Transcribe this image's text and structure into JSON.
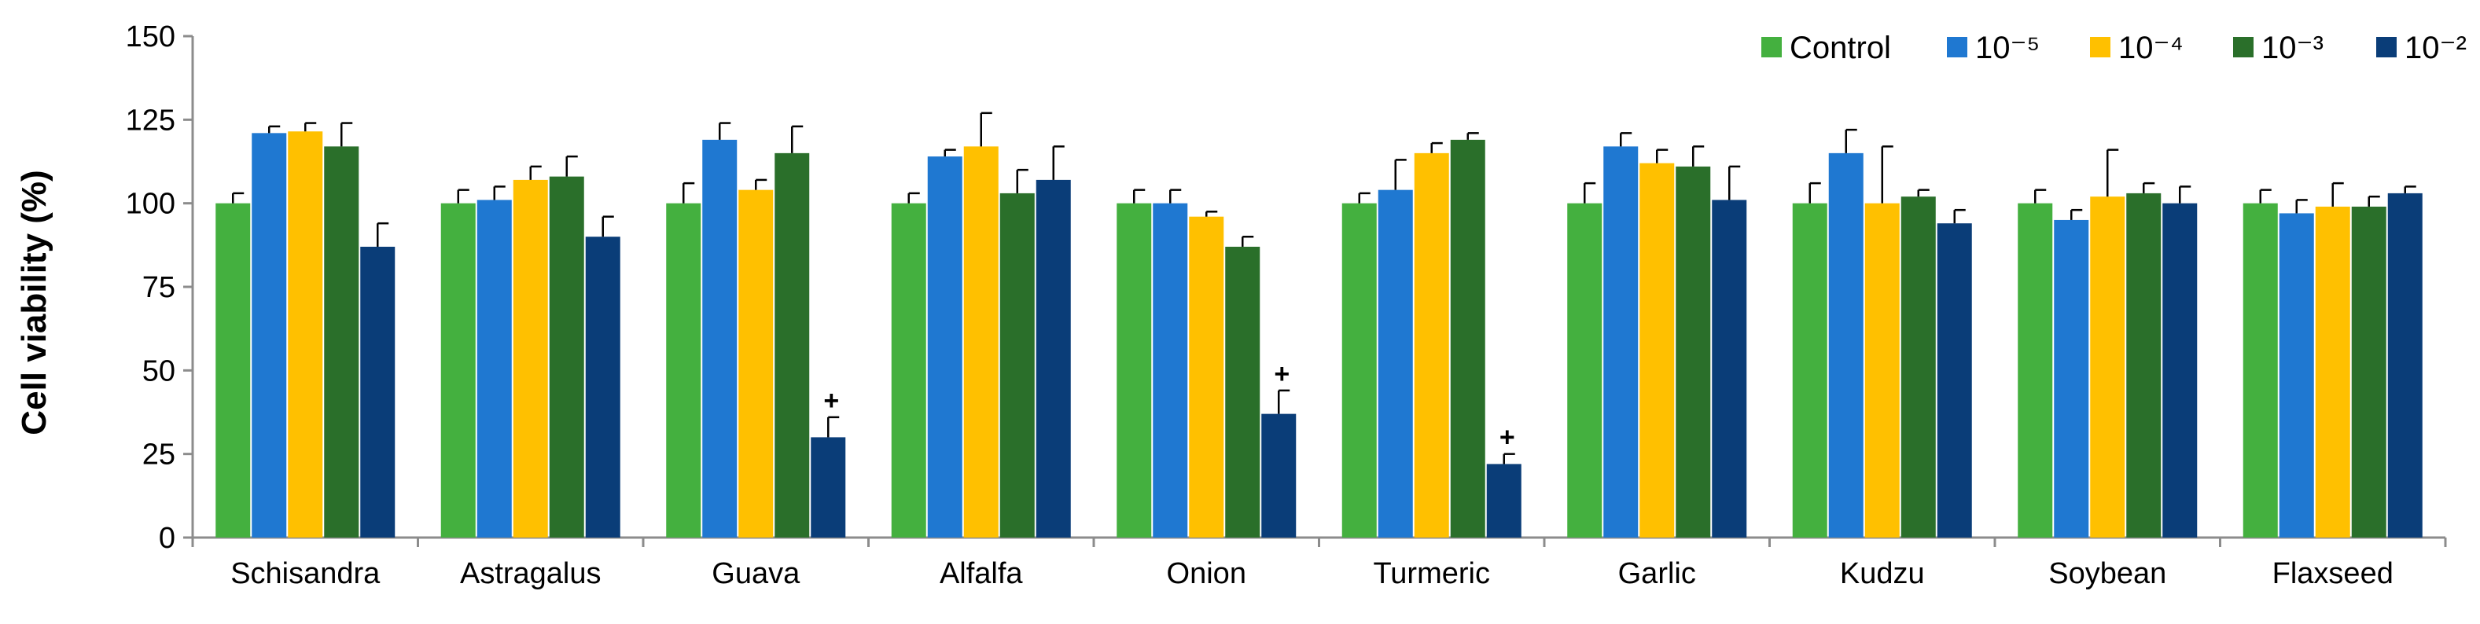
{
  "chart_data": {
    "type": "bar",
    "title": "",
    "xlabel": "",
    "ylabel": "Cell viability (%)",
    "ylim": [
      0,
      150
    ],
    "yticks": [
      0,
      25,
      50,
      75,
      100,
      125,
      150
    ],
    "grid": false,
    "legend_position": "top-right",
    "categories": [
      "Schisandra",
      "Astragalus",
      "Guava",
      "Alfalfa",
      "Onion",
      "Turmeric",
      "Garlic",
      "Kudzu",
      "Soybean",
      "Flaxseed"
    ],
    "series": [
      {
        "name": "Control",
        "color": "#44b03f",
        "values": [
          100,
          100,
          100,
          100,
          100,
          100,
          100,
          100,
          100,
          100
        ],
        "errors": [
          3,
          4,
          6,
          3,
          4,
          3,
          6,
          6,
          4,
          4
        ]
      },
      {
        "name": "10⁻⁵",
        "color": "#1f78d1",
        "values": [
          121,
          101,
          119,
          114,
          100,
          104,
          117,
          115,
          95,
          97
        ],
        "errors": [
          2,
          4,
          5,
          2,
          4,
          9,
          4,
          7,
          3,
          4
        ]
      },
      {
        "name": "10⁻⁴",
        "color": "#ffc000",
        "values": [
          121.5,
          107,
          104,
          117,
          96,
          115,
          112,
          100,
          102,
          99
        ],
        "errors": [
          2.5,
          4,
          3,
          10,
          1.5,
          3,
          4,
          17,
          14,
          7
        ]
      },
      {
        "name": "10⁻³",
        "color": "#2a6f2a",
        "values": [
          117,
          108,
          115,
          103,
          87,
          119,
          111,
          102,
          103,
          99
        ],
        "errors": [
          7,
          6,
          8,
          7,
          3,
          2,
          6,
          2,
          3,
          3
        ]
      },
      {
        "name": "10⁻²",
        "color": "#0a3d78",
        "values": [
          87,
          90,
          30,
          107,
          37,
          22,
          101,
          94,
          100,
          103
        ],
        "errors": [
          7,
          6,
          6,
          10,
          7,
          3,
          10,
          4,
          5,
          2
        ]
      }
    ],
    "annotations": [
      {
        "category": "Guava",
        "series": "10⁻²",
        "text": "+"
      },
      {
        "category": "Onion",
        "series": "10⁻²",
        "text": "+"
      },
      {
        "category": "Turmeric",
        "series": "10⁻²",
        "text": "+"
      }
    ]
  }
}
